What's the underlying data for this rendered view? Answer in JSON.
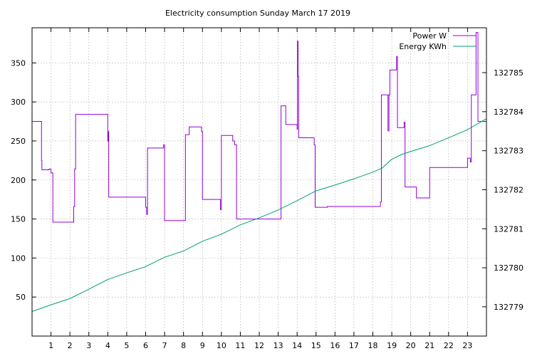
{
  "chart_data": {
    "type": "line",
    "title": "Electricity consumption Sunday March 17 2019",
    "xlabel": "",
    "ylabel": "",
    "y2label": "",
    "xlim": [
      0,
      24
    ],
    "ylim": [
      0,
      395
    ],
    "y2lim": [
      132778.25,
      132786.15
    ],
    "x_ticks": [
      1,
      2,
      3,
      4,
      5,
      6,
      7,
      8,
      9,
      10,
      11,
      12,
      13,
      14,
      15,
      16,
      17,
      18,
      19,
      20,
      21,
      22,
      23
    ],
    "y_ticks": [
      50,
      100,
      150,
      200,
      250,
      300,
      350
    ],
    "y2_ticks": [
      132779,
      132780,
      132781,
      132782,
      132783,
      132784,
      132785
    ],
    "grid": true,
    "legend_position": "top-right",
    "series": [
      {
        "name": "Power W",
        "axis": "left",
        "color": "#9400d3",
        "step": true,
        "x": [
          0,
          0.5,
          0.52,
          0.9,
          1.0,
          1.1,
          2.1,
          2.2,
          2.25,
          2.3,
          3.3,
          4.0,
          4.02,
          4.05,
          5.9,
          6.0,
          6.05,
          6.1,
          6.9,
          6.95,
          7.0,
          8.05,
          8.1,
          8.3,
          8.95,
          9.0,
          9.1,
          9.95,
          10.0,
          10.05,
          10.6,
          10.7,
          10.8,
          10.85,
          13.1,
          13.15,
          13.4,
          14.0,
          14.02,
          14.05,
          14.08,
          14.15,
          14.9,
          14.95,
          15.0,
          15.6,
          18.35,
          18.4,
          18.45,
          18.8,
          18.85,
          18.9,
          19.25,
          19.3,
          19.65,
          19.7,
          20.3,
          20.95,
          21.0,
          22.7,
          23.0,
          23.15,
          23.2,
          23.45,
          23.5,
          23.55,
          24.0
        ],
        "y": [
          275,
          225,
          213,
          214,
          209,
          146,
          146,
          166,
          214,
          284,
          284,
          250,
          262,
          178,
          178,
          165,
          156,
          241,
          241,
          245,
          148,
          148,
          258,
          268,
          262,
          175,
          175,
          162,
          257,
          257,
          250,
          245,
          150,
          150,
          150,
          295,
          271,
          265,
          378,
          333,
          254,
          254,
          245,
          165,
          165,
          166,
          166,
          172,
          309,
          263,
          309,
          341,
          358,
          267,
          274,
          191,
          177,
          177,
          216,
          216,
          228,
          223,
          309,
          389,
          389,
          275,
          275
        ]
      },
      {
        "name": "Energy KWh",
        "axis": "right",
        "color": "#009e73",
        "step": false,
        "x": [
          0,
          1,
          2,
          3,
          4,
          5,
          6,
          7,
          8,
          9,
          10,
          11,
          12,
          13,
          14,
          15,
          16,
          17,
          18,
          18.5,
          19,
          19.5,
          20,
          21,
          22,
          23,
          24
        ],
        "y": [
          132778.88,
          132779.05,
          132779.21,
          132779.45,
          132779.7,
          132779.87,
          132780.03,
          132780.27,
          132780.43,
          132780.68,
          132780.86,
          132781.1,
          132781.28,
          132781.48,
          132781.72,
          132781.97,
          132782.12,
          132782.28,
          132782.45,
          132782.56,
          132782.78,
          132782.9,
          132782.98,
          132783.13,
          132783.33,
          132783.54,
          132783.82
        ]
      }
    ]
  }
}
